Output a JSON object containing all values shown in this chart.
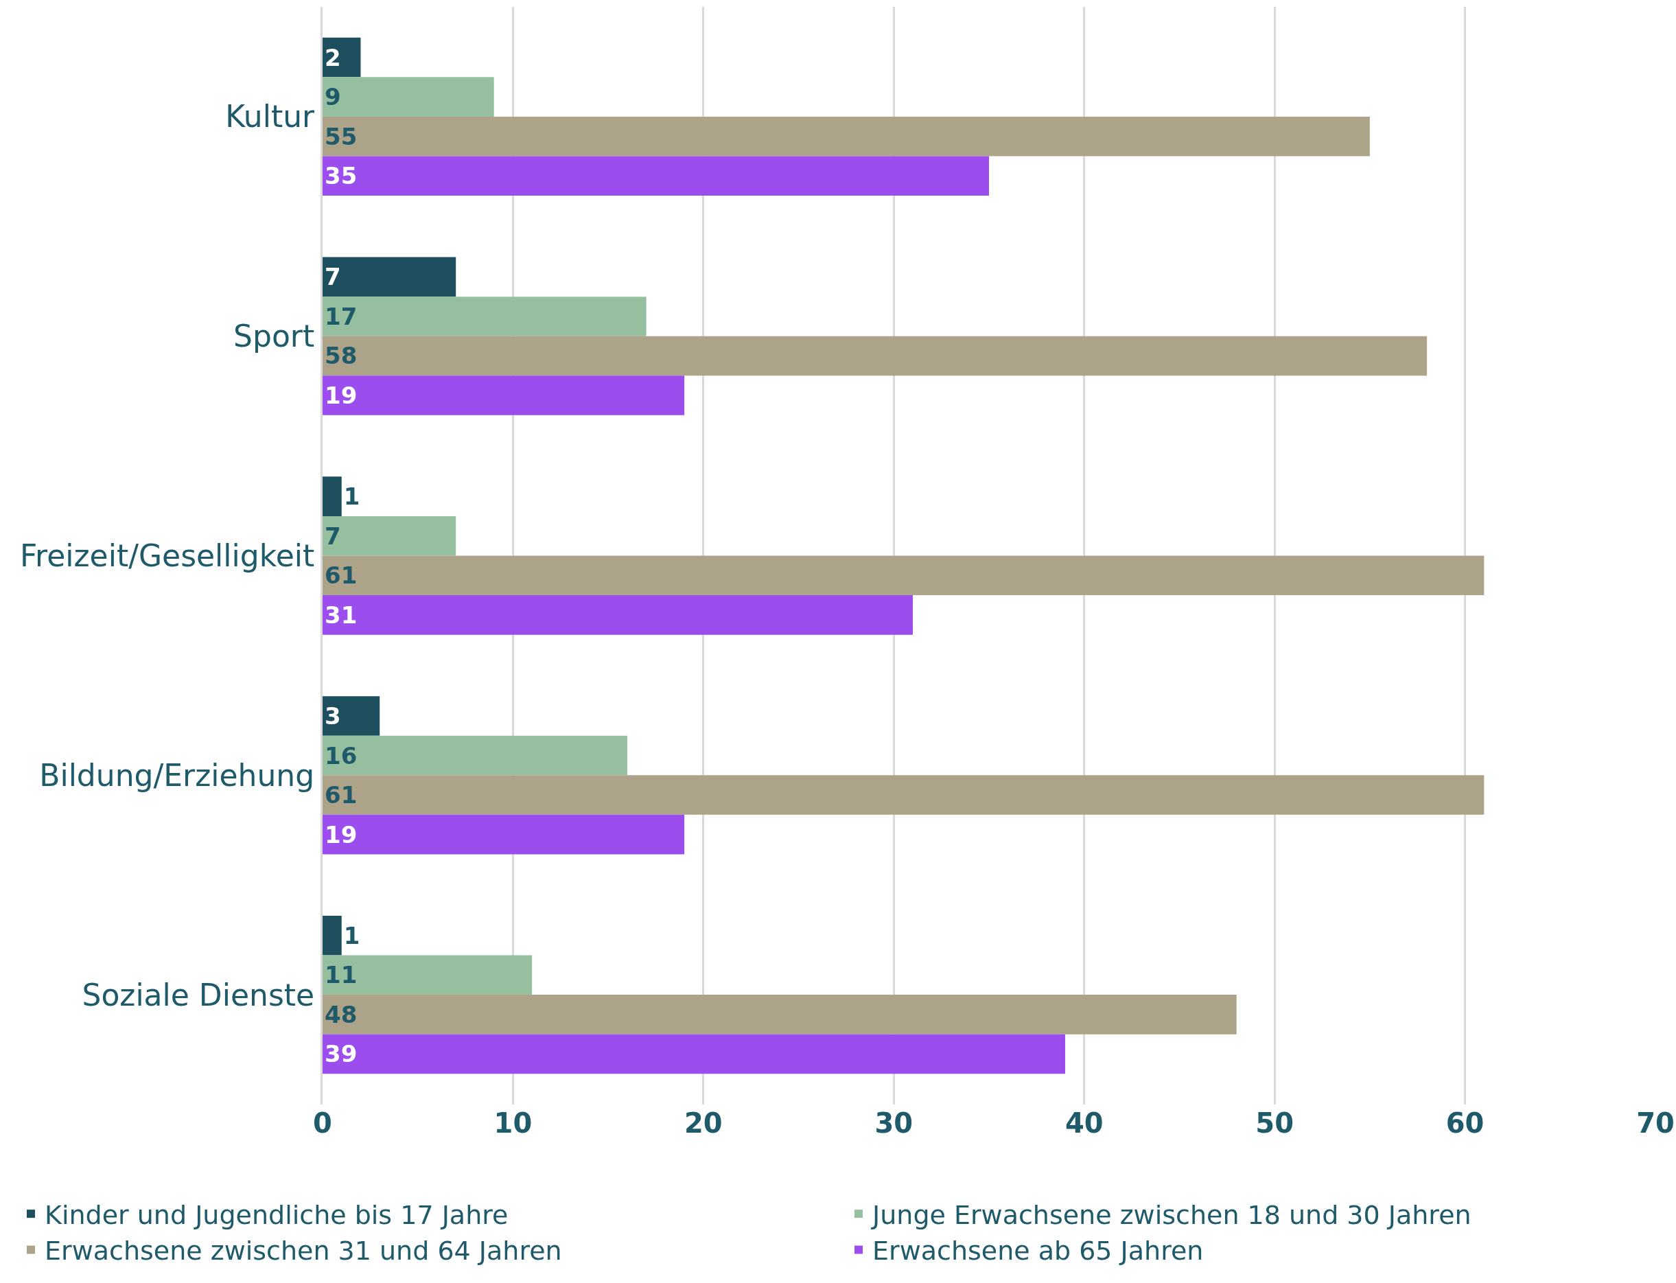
{
  "chart_data": {
    "type": "bar",
    "orientation": "horizontal",
    "categories": [
      "Kultur",
      "Sport",
      "Freizeit/Geselligkeit",
      "Bildung/Erziehung",
      "Soziale Dienste"
    ],
    "series": [
      {
        "name": "Kinder und Jugendliche bis 17 Jahre",
        "color": "#1d4f5e",
        "values": [
          2,
          7,
          1,
          3,
          1
        ]
      },
      {
        "name": "Junge Erwachsene zwischen 18 und 30 Jahren",
        "color": "#95bf9f",
        "values": [
          9,
          17,
          7,
          16,
          11
        ]
      },
      {
        "name": "Erwachsene zwischen 31 und 64 Jahren",
        "color": "#ada389",
        "values": [
          55,
          58,
          61,
          61,
          48
        ]
      },
      {
        "name": "Erwachsene ab 65 Jahren",
        "color": "#9b4ded",
        "values": [
          35,
          19,
          31,
          19,
          39
        ]
      }
    ],
    "xlim": [
      0,
      70
    ],
    "xticks": [
      0,
      10,
      20,
      30,
      40,
      50,
      60,
      70
    ],
    "grid": "x",
    "legend": "bottom",
    "data_labels": true
  }
}
